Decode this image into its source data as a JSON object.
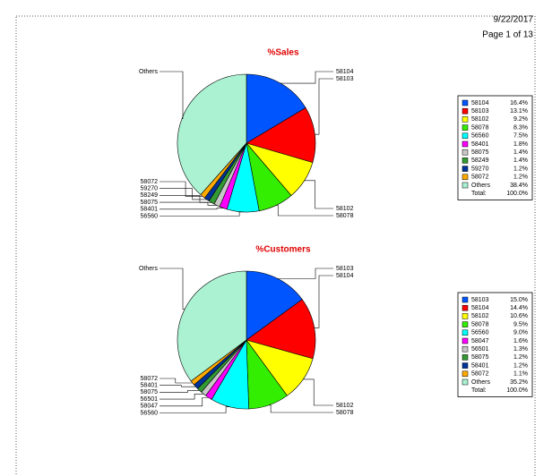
{
  "header": {
    "date": "9/22/2017",
    "page": "Page 1 of 13"
  },
  "chart_data": [
    {
      "type": "pie",
      "title": "%Sales",
      "categories": [
        "58104",
        "58103",
        "58102",
        "58078",
        "56560",
        "58401",
        "58075",
        "58249",
        "59270",
        "58072",
        "Others"
      ],
      "values": [
        16.4,
        13.1,
        9.2,
        8.3,
        7.5,
        1.8,
        1.4,
        1.4,
        1.2,
        1.2,
        38.4
      ],
      "value_labels": [
        "16.4%",
        "13.1%",
        "9.2%",
        "8.3%",
        "7.5%",
        "1.8%",
        "1.4%",
        "1.4%",
        "1.2%",
        "1.2%",
        "38.4%"
      ],
      "colors": [
        "#0055ff",
        "#ff0000",
        "#ffff00",
        "#33ee00",
        "#00ffff",
        "#ff00ff",
        "#c8c8c8",
        "#339933",
        "#003399",
        "#ffaa00",
        "#aaf2d2"
      ],
      "total_label": "Total:",
      "total_value_label": "100.0%"
    },
    {
      "type": "pie",
      "title": "%Customers",
      "categories": [
        "58103",
        "58104",
        "58102",
        "58078",
        "56560",
        "58047",
        "56501",
        "58075",
        "58401",
        "58072",
        "Others"
      ],
      "values": [
        15.0,
        14.4,
        10.6,
        9.5,
        9.0,
        1.6,
        1.3,
        1.2,
        1.2,
        1.1,
        35.2
      ],
      "value_labels": [
        "15.0%",
        "14.4%",
        "10.6%",
        "9.5%",
        "9.0%",
        "1.6%",
        "1.3%",
        "1.2%",
        "1.2%",
        "1.1%",
        "35.2%"
      ],
      "colors": [
        "#0055ff",
        "#ff0000",
        "#ffff00",
        "#33ee00",
        "#00ffff",
        "#ff00ff",
        "#c8c8c8",
        "#339933",
        "#003399",
        "#ffaa00",
        "#aaf2d2"
      ],
      "total_label": "Total:",
      "total_value_label": "100.0%"
    }
  ]
}
